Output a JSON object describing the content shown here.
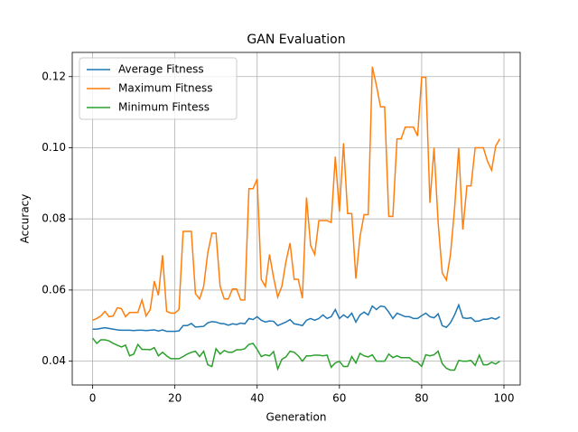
{
  "chart_data": {
    "type": "line",
    "title": "GAN Evaluation",
    "x_label": "Generation",
    "y_label": "Accuracy",
    "x": [
      0,
      1,
      2,
      3,
      4,
      5,
      6,
      7,
      8,
      9,
      10,
      11,
      12,
      13,
      14,
      15,
      16,
      17,
      18,
      19,
      20,
      21,
      22,
      23,
      24,
      25,
      26,
      27,
      28,
      29,
      30,
      31,
      32,
      33,
      34,
      35,
      36,
      37,
      38,
      39,
      40,
      41,
      42,
      43,
      44,
      45,
      46,
      47,
      48,
      49,
      50,
      51,
      52,
      53,
      54,
      55,
      56,
      57,
      58,
      59,
      60,
      61,
      62,
      63,
      64,
      65,
      66,
      67,
      68,
      69,
      70,
      71,
      72,
      73,
      74,
      75,
      76,
      77,
      78,
      79,
      80,
      81,
      82,
      83,
      84,
      85,
      86,
      87,
      88,
      89,
      90,
      91,
      92,
      93,
      94,
      95,
      96,
      97,
      98,
      99
    ],
    "series": [
      {
        "name": "Average Fitness",
        "color": "#1f77b4",
        "values": [
          0.049,
          0.049,
          0.0492,
          0.0494,
          0.0492,
          0.049,
          0.0488,
          0.0487,
          0.0487,
          0.0487,
          0.0486,
          0.0487,
          0.0487,
          0.0486,
          0.0487,
          0.0488,
          0.0485,
          0.0488,
          0.0484,
          0.0484,
          0.0484,
          0.0485,
          0.05,
          0.05,
          0.0506,
          0.0496,
          0.0497,
          0.0498,
          0.0508,
          0.0511,
          0.051,
          0.0506,
          0.0505,
          0.0501,
          0.0505,
          0.0503,
          0.0507,
          0.0505,
          0.052,
          0.0517,
          0.0525,
          0.0515,
          0.051,
          0.0513,
          0.0512,
          0.05,
          0.0505,
          0.051,
          0.0517,
          0.0505,
          0.0503,
          0.05,
          0.0515,
          0.052,
          0.0515,
          0.052,
          0.053,
          0.052,
          0.0525,
          0.0545,
          0.052,
          0.053,
          0.0522,
          0.0535,
          0.051,
          0.053,
          0.0538,
          0.053,
          0.0555,
          0.0545,
          0.0555,
          0.0553,
          0.0538,
          0.052,
          0.0535,
          0.053,
          0.0525,
          0.0525,
          0.052,
          0.052,
          0.0528,
          0.0535,
          0.0525,
          0.0522,
          0.0533,
          0.05,
          0.0495,
          0.0508,
          0.053,
          0.0558,
          0.0522,
          0.052,
          0.0522,
          0.0512,
          0.0513,
          0.0518,
          0.0518,
          0.0522,
          0.0518,
          0.0525
        ]
      },
      {
        "name": "Maximum Fitness",
        "color": "#ff7f0e",
        "values": [
          0.0515,
          0.052,
          0.0527,
          0.054,
          0.0525,
          0.0527,
          0.055,
          0.0548,
          0.0525,
          0.0537,
          0.0537,
          0.0537,
          0.0572,
          0.0527,
          0.0545,
          0.0625,
          0.0585,
          0.0698,
          0.054,
          0.0535,
          0.0535,
          0.0545,
          0.0765,
          0.0765,
          0.0765,
          0.059,
          0.0575,
          0.061,
          0.0705,
          0.076,
          0.076,
          0.061,
          0.0575,
          0.0575,
          0.0603,
          0.0603,
          0.0572,
          0.0572,
          0.0885,
          0.0885,
          0.0912,
          0.063,
          0.061,
          0.07,
          0.0635,
          0.058,
          0.061,
          0.068,
          0.0732,
          0.063,
          0.063,
          0.0577,
          0.086,
          0.0725,
          0.07,
          0.0795,
          0.0795,
          0.0795,
          0.079,
          0.0975,
          0.082,
          0.1013,
          0.0815,
          0.0815,
          0.0632,
          0.075,
          0.0812,
          0.0812,
          0.1228,
          0.1175,
          0.1115,
          0.1115,
          0.0807,
          0.0807,
          0.1025,
          0.1025,
          0.1058,
          0.1058,
          0.1058,
          0.1033,
          0.1198,
          0.1198,
          0.0845,
          0.1,
          0.079,
          0.0648,
          0.0628,
          0.07,
          0.083,
          0.1,
          0.077,
          0.0893,
          0.0893,
          0.1,
          0.1,
          0.1,
          0.0962,
          0.0937,
          0.1005,
          0.1025
        ]
      },
      {
        "name": "Minimum Fintess",
        "color": "#2ca02c",
        "values": [
          0.0465,
          0.045,
          0.046,
          0.046,
          0.0457,
          0.045,
          0.0445,
          0.044,
          0.0445,
          0.0415,
          0.042,
          0.0447,
          0.0433,
          0.0433,
          0.0432,
          0.0438,
          0.0415,
          0.0425,
          0.0415,
          0.0407,
          0.0407,
          0.0407,
          0.0413,
          0.042,
          0.0425,
          0.0428,
          0.0413,
          0.0428,
          0.039,
          0.0385,
          0.0435,
          0.042,
          0.043,
          0.0425,
          0.0425,
          0.0432,
          0.0432,
          0.0435,
          0.0447,
          0.045,
          0.0433,
          0.0413,
          0.0418,
          0.0415,
          0.0427,
          0.0378,
          0.0405,
          0.0412,
          0.0428,
          0.0425,
          0.0415,
          0.04,
          0.0415,
          0.0415,
          0.0417,
          0.0417,
          0.0415,
          0.0417,
          0.0383,
          0.0395,
          0.04,
          0.0385,
          0.0385,
          0.0413,
          0.0395,
          0.0422,
          0.0415,
          0.0412,
          0.0418,
          0.04,
          0.04,
          0.04,
          0.042,
          0.041,
          0.0415,
          0.041,
          0.041,
          0.041,
          0.04,
          0.0397,
          0.0385,
          0.0418,
          0.0415,
          0.0418,
          0.0428,
          0.0393,
          0.038,
          0.0375,
          0.0375,
          0.0402,
          0.04,
          0.04,
          0.0402,
          0.0388,
          0.0417,
          0.039,
          0.039,
          0.0397,
          0.0392,
          0.04
        ]
      }
    ],
    "xlim": [
      -4.95,
      103.95
    ],
    "ylim": [
      0.0333,
      0.1268
    ],
    "xticks": [
      0,
      20,
      40,
      60,
      80,
      100
    ],
    "yticks": [
      0.04,
      0.06,
      0.08,
      {
        "value": 0.1,
        "label": "0.10"
      },
      0.12
    ],
    "grid": true,
    "legend": "upper-left"
  }
}
